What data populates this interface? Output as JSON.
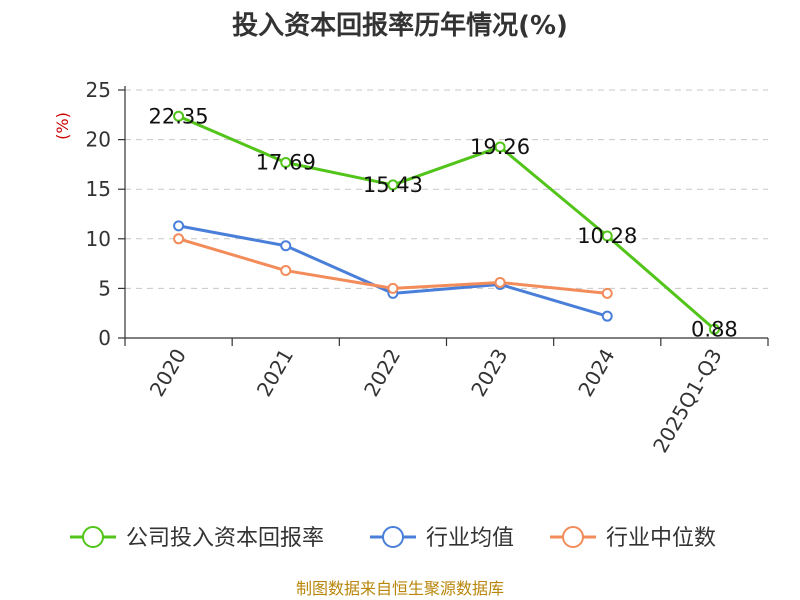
{
  "chart_data": {
    "type": "line",
    "title": "投入资本回报率历年情况(%)",
    "ylabel": "(%)",
    "xlabel": "",
    "categories": [
      "2020",
      "2021",
      "2022",
      "2023",
      "2024",
      "2025Q1-Q3"
    ],
    "ylim": [
      0,
      25
    ],
    "yticks": [
      0,
      5,
      10,
      15,
      20,
      25
    ],
    "grid": true,
    "legend_position": "bottom",
    "series": [
      {
        "name": "公司投入资本回报率",
        "color": "#52c41a",
        "values": [
          22.35,
          17.69,
          15.43,
          19.26,
          10.28,
          0.88
        ],
        "labels": [
          "22.35",
          "17.69",
          "15.43",
          "19.26",
          "10.28",
          "0.88"
        ]
      },
      {
        "name": "行业均值",
        "color": "#4a7fd9",
        "values": [
          11.3,
          9.3,
          4.5,
          5.4,
          2.2,
          null
        ]
      },
      {
        "name": "行业中位数",
        "color": "#f28c5b",
        "values": [
          10.0,
          6.8,
          5.0,
          5.6,
          4.5,
          null
        ]
      }
    ]
  },
  "source_text": "制图数据来自恒生聚源数据库"
}
